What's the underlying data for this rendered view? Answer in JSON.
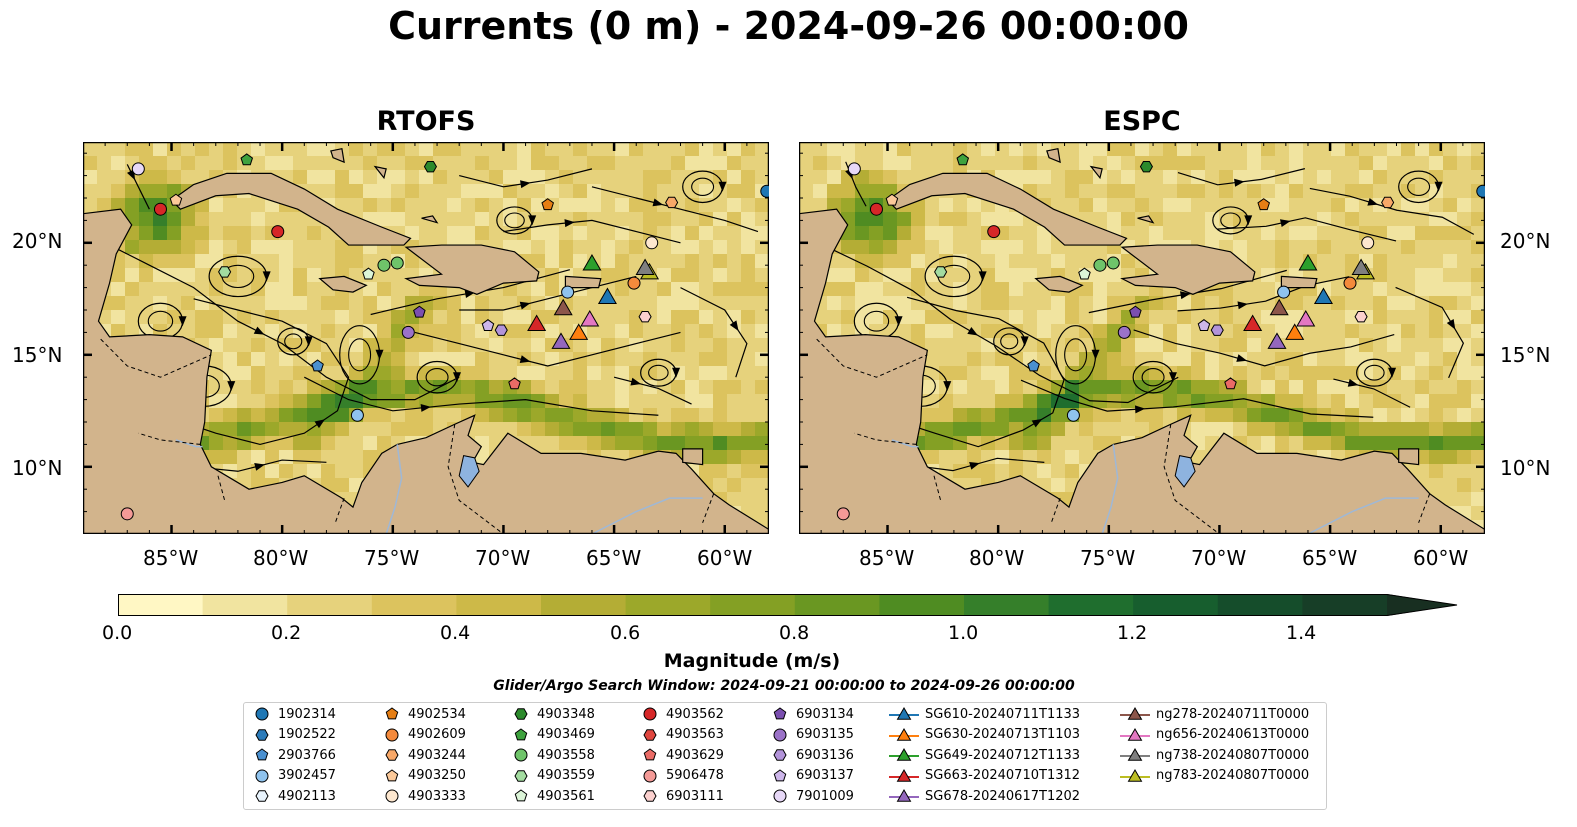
{
  "title": "Currents (0 m) - 2024-09-26 00:00:00",
  "panels": [
    {
      "title": "RTOFS"
    },
    {
      "title": "ESPC"
    }
  ],
  "axes": {
    "lon_ticks": [
      "85°W",
      "80°W",
      "75°W",
      "70°W",
      "65°W",
      "60°W"
    ],
    "lat_ticks": [
      "20°N",
      "15°N",
      "10°N"
    ]
  },
  "colorbar": {
    "label": "Magnitude (m/s)",
    "ticks": [
      "0.0",
      "0.2",
      "0.4",
      "0.6",
      "0.8",
      "1.0",
      "1.2",
      "1.4"
    ],
    "colors": [
      "#fff7c4",
      "#f1e4a0",
      "#e6d27c",
      "#dcc35e",
      "#cdb948",
      "#b4ad35",
      "#9ca82a",
      "#84a024",
      "#6a9722",
      "#4f8c22",
      "#357f2a",
      "#1f6e2e",
      "#175e2e",
      "#154d2b",
      "#173e27",
      "#182f21"
    ]
  },
  "search_window": "Glider/Argo Search Window: 2024-09-21 00:00:00 to 2024-09-26 00:00:00",
  "colors": {
    "land": "#d2b48c",
    "lake": "#8eb3df",
    "river": "#9fb8d6"
  },
  "legend": {
    "columns": [
      [
        {
          "label": "1902314",
          "marker": "circle",
          "color": "#1f77b4"
        },
        {
          "label": "1902522",
          "marker": "hexagon",
          "color": "#2b7bba"
        },
        {
          "label": "2903766",
          "marker": "pentagon",
          "color": "#4a90d0"
        },
        {
          "label": "3902457",
          "marker": "circle",
          "color": "#8fc3ee"
        },
        {
          "label": "4902113",
          "marker": "hexagon",
          "color": "#e8f3fc"
        }
      ],
      [
        {
          "label": "4902534",
          "marker": "pentagon",
          "color": "#e67e14"
        },
        {
          "label": "4902609",
          "marker": "circle",
          "color": "#f48a3c"
        },
        {
          "label": "4903244",
          "marker": "hexagon",
          "color": "#f8a868"
        },
        {
          "label": "4903250",
          "marker": "pentagon",
          "color": "#fbc99a"
        },
        {
          "label": "4903333",
          "marker": "circle",
          "color": "#fde7cf"
        }
      ],
      [
        {
          "label": "4903348",
          "marker": "hexagon",
          "color": "#2c8a2c"
        },
        {
          "label": "4903469",
          "marker": "pentagon",
          "color": "#3ea23e"
        },
        {
          "label": "4903558",
          "marker": "circle",
          "color": "#6fc46a"
        },
        {
          "label": "4903559",
          "marker": "hexagon",
          "color": "#a3dca0"
        },
        {
          "label": "4903561",
          "marker": "pentagon",
          "color": "#dcf5d8"
        }
      ],
      [
        {
          "label": "4903562",
          "marker": "circle",
          "color": "#d62728"
        },
        {
          "label": "4903563",
          "marker": "hexagon",
          "color": "#e0463f"
        },
        {
          "label": "4903629",
          "marker": "pentagon",
          "color": "#ea6b66"
        },
        {
          "label": "5906478",
          "marker": "circle",
          "color": "#f49a97"
        },
        {
          "label": "6903111",
          "marker": "hexagon",
          "color": "#fbd0ce"
        }
      ],
      [
        {
          "label": "6903134",
          "marker": "pentagon",
          "color": "#7b4fb0"
        },
        {
          "label": "6903135",
          "marker": "circle",
          "color": "#9b72c8"
        },
        {
          "label": "6903136",
          "marker": "hexagon",
          "color": "#b394da"
        },
        {
          "label": "6903137",
          "marker": "pentagon",
          "color": "#cdb6ea"
        },
        {
          "label": "7901009",
          "marker": "circle",
          "color": "#e7d8f7"
        }
      ],
      [
        {
          "label": "SG610-20240711T1133",
          "marker": "triangle",
          "color": "#1f77b4"
        },
        {
          "label": "SG630-20240713T1103",
          "marker": "triangle",
          "color": "#ff7f0e"
        },
        {
          "label": "SG649-20240712T1133",
          "marker": "triangle",
          "color": "#2ca02c"
        },
        {
          "label": "SG663-20240710T1312",
          "marker": "triangle",
          "color": "#d62728"
        },
        {
          "label": "SG678-20240617T1202",
          "marker": "triangle",
          "color": "#9467bd"
        }
      ],
      [
        {
          "label": "ng278-20240711T0000",
          "marker": "triangle",
          "color": "#8c564b"
        },
        {
          "label": "ng656-20240613T0000",
          "marker": "triangle",
          "color": "#e377c2"
        },
        {
          "label": "ng738-20240807T0000",
          "marker": "triangle",
          "color": "#7f7f7f"
        },
        {
          "label": "ng783-20240807T0000",
          "marker": "triangle",
          "color": "#bcbd22"
        }
      ]
    ]
  },
  "map_extent": {
    "lon": [
      -89,
      -58
    ],
    "lat": [
      7,
      24.5
    ]
  },
  "floats": [
    {
      "id": "7901009",
      "lon": -86.5,
      "lat": 23.3
    },
    {
      "id": "4903562",
      "lon": -85.5,
      "lat": 21.5
    },
    {
      "id": "4903250",
      "lon": -84.8,
      "lat": 21.9
    },
    {
      "id": "4903469",
      "lon": -81.6,
      "lat": 23.7
    },
    {
      "id": "4903562",
      "lon": -80.2,
      "lat": 20.5
    },
    {
      "id": "4903559",
      "lon": -82.6,
      "lat": 18.7
    },
    {
      "id": "4903561",
      "lon": -76.1,
      "lat": 18.6
    },
    {
      "id": "4903558",
      "lon": -75.4,
      "lat": 19.0
    },
    {
      "id": "4903558",
      "lon": -74.8,
      "lat": 19.1
    },
    {
      "id": "4903348",
      "lon": -73.3,
      "lat": 23.4
    },
    {
      "id": "4902534",
      "lon": -68.0,
      "lat": 21.7
    },
    {
      "id": "4903244",
      "lon": -62.4,
      "lat": 21.8
    },
    {
      "id": "4903333",
      "lon": -63.3,
      "lat": 20.0
    },
    {
      "id": "1902314",
      "lon": -58.1,
      "lat": 22.3
    },
    {
      "id": "3902457",
      "lon": -67.1,
      "lat": 17.8
    },
    {
      "id": "4902609",
      "lon": -64.1,
      "lat": 18.2
    },
    {
      "id": "6903134",
      "lon": -73.8,
      "lat": 16.9
    },
    {
      "id": "6903135",
      "lon": -74.3,
      "lat": 16.0
    },
    {
      "id": "6903137",
      "lon": -70.7,
      "lat": 16.3
    },
    {
      "id": "6903136",
      "lon": -70.1,
      "lat": 16.1
    },
    {
      "id": "6903111",
      "lon": -63.6,
      "lat": 16.7
    },
    {
      "id": "2903766",
      "lon": -78.4,
      "lat": 14.5
    },
    {
      "id": "4903629",
      "lon": -69.5,
      "lat": 13.7
    },
    {
      "id": "3902457",
      "lon": -76.6,
      "lat": 12.3
    },
    {
      "id": "5906478",
      "lon": -87.0,
      "lat": 7.9
    }
  ],
  "gliders": [
    {
      "id": "SG649-20240712T1133",
      "lon": -66.0,
      "lat": 19.1
    },
    {
      "id": "ng783-20240807T0000",
      "lon": -63.4,
      "lat": 18.7
    },
    {
      "id": "ng738-20240807T0000",
      "lon": -63.6,
      "lat": 18.9
    },
    {
      "id": "SG610-20240711T1133",
      "lon": -65.3,
      "lat": 17.6
    },
    {
      "id": "ng278-20240711T0000",
      "lon": -67.3,
      "lat": 17.1
    },
    {
      "id": "ng656-20240613T0000",
      "lon": -66.1,
      "lat": 16.6
    },
    {
      "id": "SG663-20240710T1312",
      "lon": -68.5,
      "lat": 16.4
    },
    {
      "id": "SG630-20240713T1103",
      "lon": -66.6,
      "lat": 16.0
    },
    {
      "id": "SG678-20240617T1202",
      "lon": -67.4,
      "lat": 15.6
    }
  ]
}
